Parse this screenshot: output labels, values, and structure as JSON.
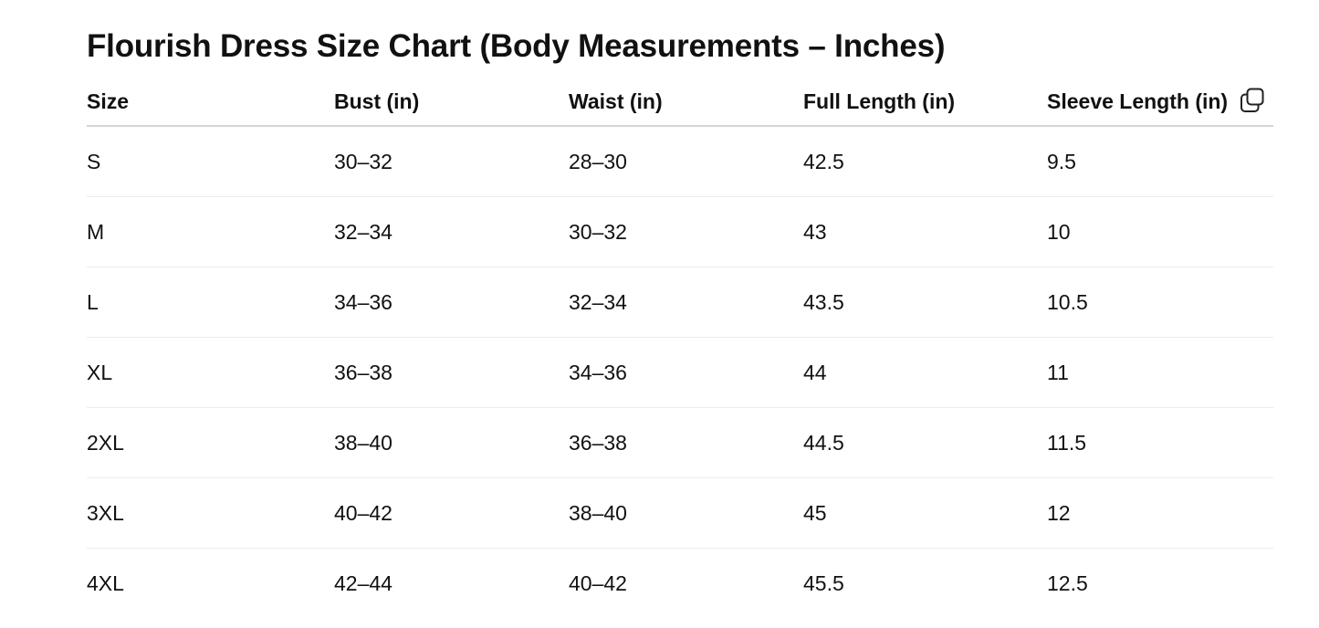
{
  "title": "Flourish Dress Size Chart (Body Measurements – Inches)",
  "icons": {
    "copy": "copy-icon"
  },
  "table": {
    "headers": [
      "Size",
      "Bust (in)",
      "Waist (in)",
      "Full Length (in)",
      "Sleeve Length (in)"
    ],
    "rows": [
      [
        "S",
        "30–32",
        "28–30",
        "42.5",
        "9.5"
      ],
      [
        "M",
        "32–34",
        "30–32",
        "43",
        "10"
      ],
      [
        "L",
        "34–36",
        "32–34",
        "43.5",
        "10.5"
      ],
      [
        "XL",
        "36–38",
        "34–36",
        "44",
        "11"
      ],
      [
        "2XL",
        "38–40",
        "36–38",
        "44.5",
        "11.5"
      ],
      [
        "3XL",
        "40–42",
        "38–40",
        "45",
        "12"
      ],
      [
        "4XL",
        "42–44",
        "40–42",
        "45.5",
        "12.5"
      ]
    ]
  }
}
